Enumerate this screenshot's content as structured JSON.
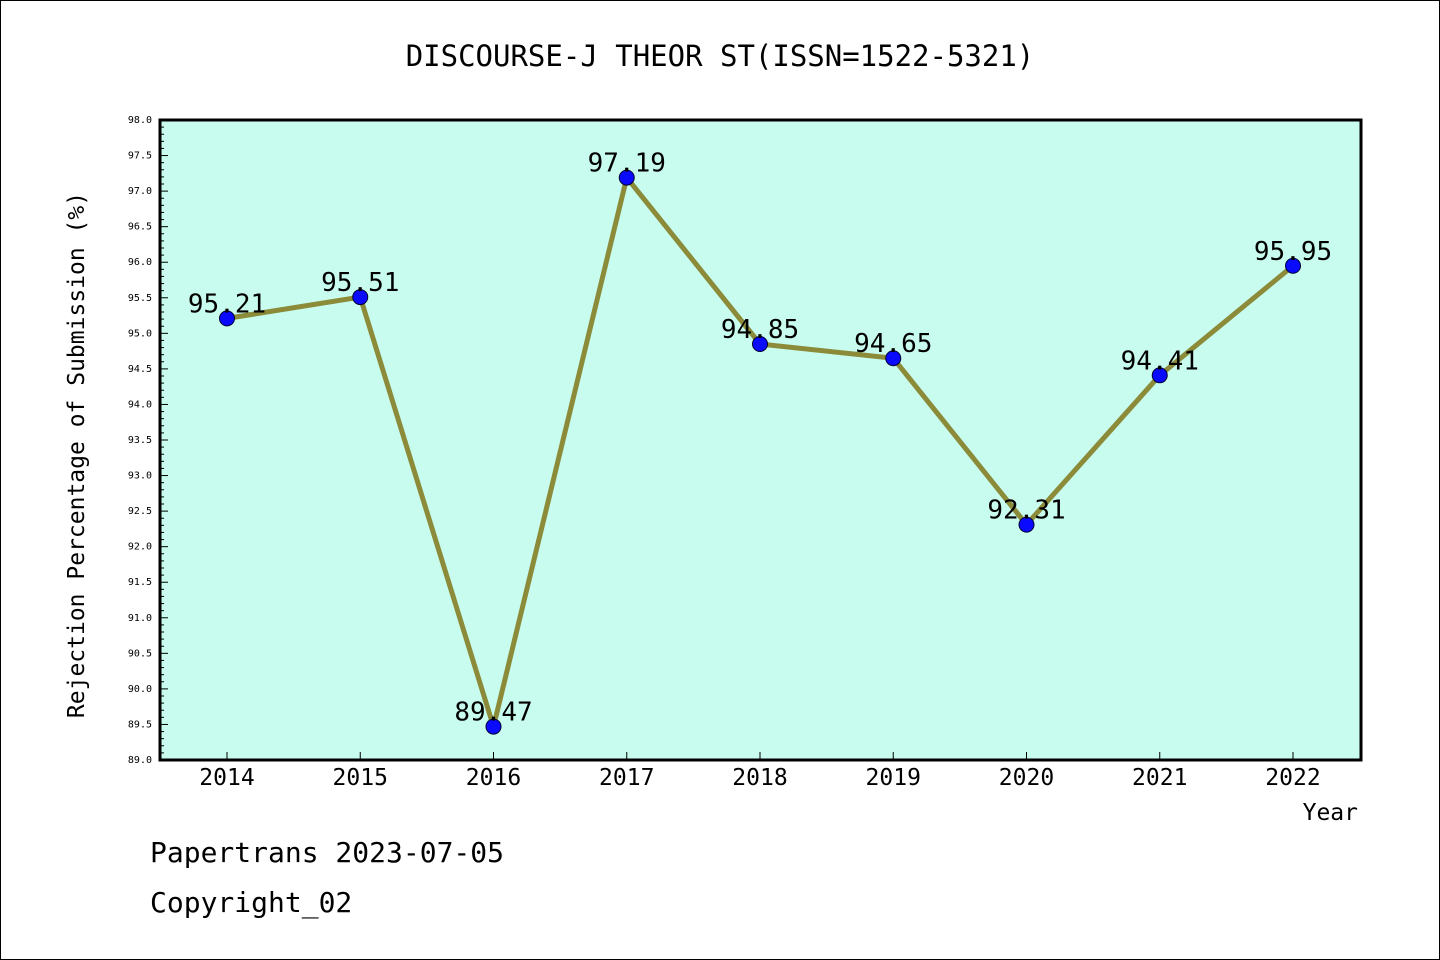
{
  "chart_data": {
    "type": "line",
    "title": "DISCOURSE-J THEOR ST(ISSN=1522-5321)",
    "xlabel": "Year",
    "ylabel": "Rejection Percentage of Submission (%)",
    "categories": [
      "2014",
      "2015",
      "2016",
      "2017",
      "2018",
      "2019",
      "2020",
      "2021",
      "2022"
    ],
    "series": [
      {
        "values": [
          95.21,
          95.51,
          89.47,
          97.19,
          94.85,
          94.65,
          92.31,
          94.41,
          95.95
        ],
        "labels": [
          "95.21",
          "95.51",
          "89.47",
          "97.19",
          "94.85",
          "94.65",
          "92.31",
          "94.41",
          "95.95"
        ]
      }
    ],
    "ylim": [
      89.0,
      98.0
    ],
    "yticks": [
      "89.0",
      "89.5",
      "90.0",
      "90.5",
      "91.0",
      "91.5",
      "92.0",
      "92.5",
      "93.0",
      "93.5",
      "94.0",
      "94.5",
      "95.0",
      "95.5",
      "96.0",
      "96.5",
      "97.0",
      "97.5",
      "98.0"
    ],
    "grid": false,
    "colors": {
      "plot_background": "#c8fcee",
      "line": "#8b8b3a",
      "marker": "#0a0aff"
    }
  },
  "footer": {
    "source": "Papertrans 2023-07-05",
    "copyright": "Copyright_02"
  }
}
